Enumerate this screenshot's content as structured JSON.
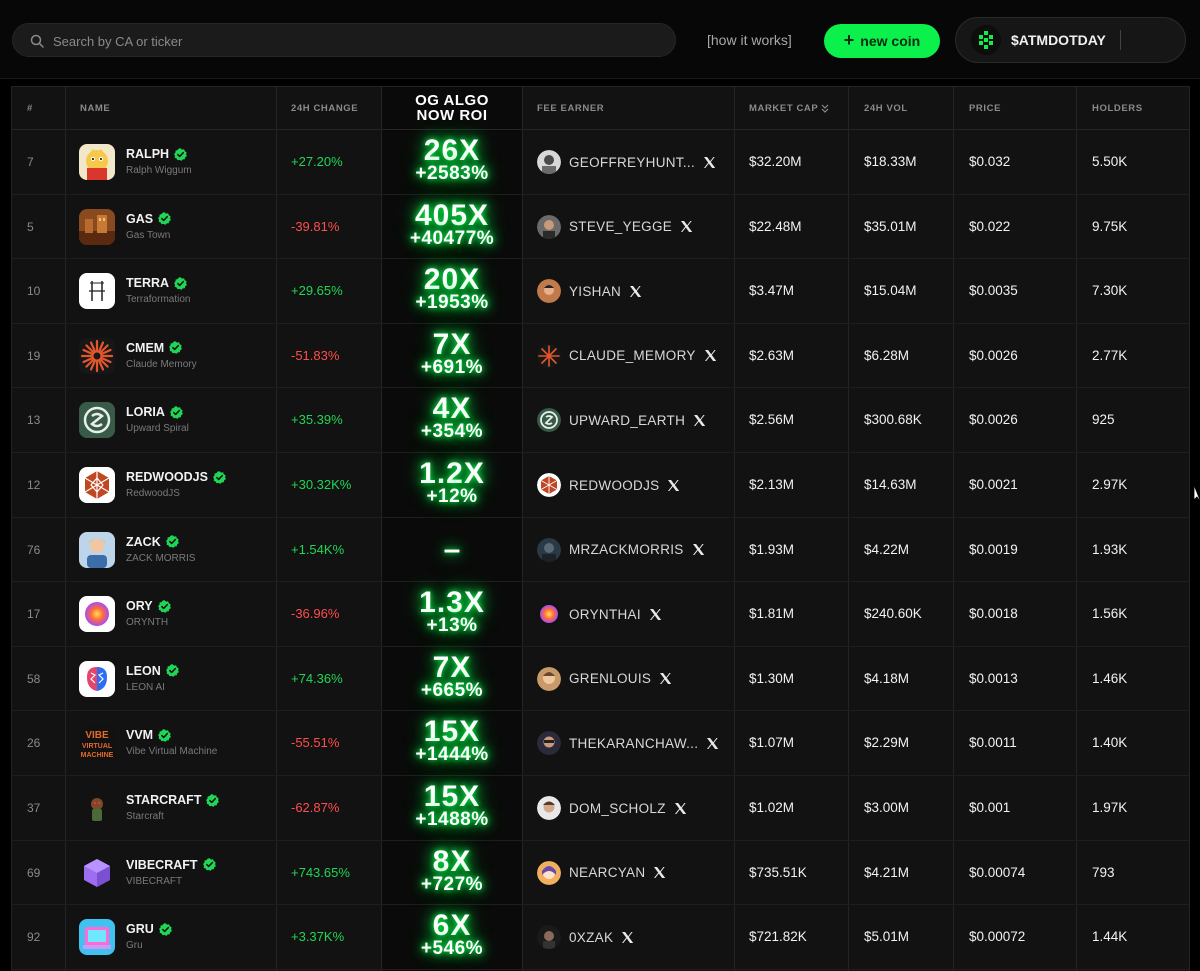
{
  "search": {
    "placeholder": "Search by CA or ticker"
  },
  "header": {
    "how_label": "[how it works]",
    "new_coin_label": "new coin",
    "account_name": "$ATMDOTDAY"
  },
  "colors": {
    "accent": "#0bf04a",
    "positive": "#1fd655",
    "negative": "#ff4d4d"
  },
  "table": {
    "columns": {
      "rank": "#",
      "name": "NAME",
      "change": "24H CHANGE",
      "og_line1": "OG ALGO",
      "og_line2": "NOW ROI",
      "fee": "FEE EARNER",
      "mcap": "MARKET CAP",
      "vol": "24H VOL",
      "price": "PRICE",
      "holders": "HOLDERS"
    },
    "rows": [
      {
        "rank": "7",
        "ticker": "RALPH",
        "name": "Ralph Wiggum",
        "change": "+27.20%",
        "dir": "pos",
        "mult": "26X",
        "roi": "+2583%",
        "fee": "GEOFFREYHUNT...",
        "mcap": "$32.20M",
        "vol": "$18.33M",
        "price": "$0.032",
        "holders": "5.50K",
        "icon": "ralph-icon",
        "avatar": "geoffreyhunt-avatar"
      },
      {
        "rank": "5",
        "ticker": "GAS",
        "name": "Gas Town",
        "change": "-39.81%",
        "dir": "neg",
        "mult": "405X",
        "roi": "+40477%",
        "fee": "STEVE_YEGGE",
        "mcap": "$22.48M",
        "vol": "$35.01M",
        "price": "$0.022",
        "holders": "9.75K",
        "icon": "gas-town-icon",
        "avatar": "steve-yegge-avatar"
      },
      {
        "rank": "10",
        "ticker": "TERRA",
        "name": "Terraformation",
        "change": "+29.65%",
        "dir": "pos",
        "mult": "20X",
        "roi": "+1953%",
        "fee": "YISHAN",
        "mcap": "$3.47M",
        "vol": "$15.04M",
        "price": "$0.0035",
        "holders": "7.30K",
        "icon": "terra-icon",
        "avatar": "yishan-avatar"
      },
      {
        "rank": "19",
        "ticker": "CMEM",
        "name": "Claude Memory",
        "change": "-51.83%",
        "dir": "neg",
        "mult": "7X",
        "roi": "+691%",
        "fee": "CLAUDE_MEMORY",
        "mcap": "$2.63M",
        "vol": "$6.28M",
        "price": "$0.0026",
        "holders": "2.77K",
        "icon": "claude-memory-icon",
        "avatar": "claude-memory-avatar"
      },
      {
        "rank": "13",
        "ticker": "LORIA",
        "name": "Upward Spiral",
        "change": "+35.39%",
        "dir": "pos",
        "mult": "4X",
        "roi": "+354%",
        "fee": "UPWARD_EARTH",
        "mcap": "$2.56M",
        "vol": "$300.68K",
        "price": "$0.0026",
        "holders": "925",
        "icon": "loria-icon",
        "avatar": "upward-earth-avatar"
      },
      {
        "rank": "12",
        "ticker": "REDWOODJS",
        "name": "RedwoodJS",
        "change": "+30.32K%",
        "dir": "pos",
        "mult": "1.2X",
        "roi": "+12%",
        "fee": "REDWOODJS",
        "mcap": "$2.13M",
        "vol": "$14.63M",
        "price": "$0.0021",
        "holders": "2.97K",
        "icon": "redwoodjs-icon",
        "avatar": "redwoodjs-avatar"
      },
      {
        "rank": "76",
        "ticker": "ZACK",
        "name": "ZACK MORRIS",
        "change": "+1.54K%",
        "dir": "pos",
        "mult": "",
        "roi": "",
        "dash": "–",
        "fee": "MRZACKMORRIS",
        "mcap": "$1.93M",
        "vol": "$4.22M",
        "price": "$0.0019",
        "holders": "1.93K",
        "icon": "zack-icon",
        "avatar": "mrzackmorris-avatar"
      },
      {
        "rank": "17",
        "ticker": "ORY",
        "name": "ORYNTH",
        "change": "-36.96%",
        "dir": "neg",
        "mult": "1.3X",
        "roi": "+13%",
        "fee": "ORYNTHAI",
        "mcap": "$1.81M",
        "vol": "$240.60K",
        "price": "$0.0018",
        "holders": "1.56K",
        "icon": "ory-icon",
        "avatar": "orynthai-avatar"
      },
      {
        "rank": "58",
        "ticker": "LEON",
        "name": "LEON AI",
        "change": "+74.36%",
        "dir": "pos",
        "mult": "7X",
        "roi": "+665%",
        "fee": "GRENLOUIS",
        "mcap": "$1.30M",
        "vol": "$4.18M",
        "price": "$0.0013",
        "holders": "1.46K",
        "icon": "leon-icon",
        "avatar": "grenlouis-avatar"
      },
      {
        "rank": "26",
        "ticker": "VVM",
        "name": "Vibe Virtual Machine",
        "change": "-55.51%",
        "dir": "neg",
        "mult": "15X",
        "roi": "+1444%",
        "fee": "THEKARANCHAW...",
        "mcap": "$1.07M",
        "vol": "$2.29M",
        "price": "$0.0011",
        "holders": "1.40K",
        "icon": "vvm-icon",
        "avatar": "thekaranchaw-avatar"
      },
      {
        "rank": "37",
        "ticker": "STARCRAFT",
        "name": "Starcraft",
        "change": "-62.87%",
        "dir": "neg",
        "mult": "15X",
        "roi": "+1488%",
        "fee": "DOM_SCHOLZ",
        "mcap": "$1.02M",
        "vol": "$3.00M",
        "price": "$0.001",
        "holders": "1.97K",
        "icon": "starcraft-icon",
        "avatar": "dom-scholz-avatar"
      },
      {
        "rank": "69",
        "ticker": "VIBECRAFT",
        "name": "VIBECRAFT",
        "change": "+743.65%",
        "dir": "pos",
        "mult": "8X",
        "roi": "+727%",
        "fee": "NEARCYAN",
        "mcap": "$735.51K",
        "vol": "$4.21M",
        "price": "$0.00074",
        "holders": "793",
        "icon": "vibecraft-icon",
        "avatar": "nearcyan-avatar"
      },
      {
        "rank": "92",
        "ticker": "GRU",
        "name": "Gru",
        "change": "+3.37K%",
        "dir": "pos",
        "mult": "6X",
        "roi": "+546%",
        "fee": "0XZAK",
        "mcap": "$721.82K",
        "vol": "$5.01M",
        "price": "$0.00072",
        "holders": "1.44K",
        "icon": "gru-icon",
        "avatar": "0xzak-avatar"
      }
    ]
  }
}
